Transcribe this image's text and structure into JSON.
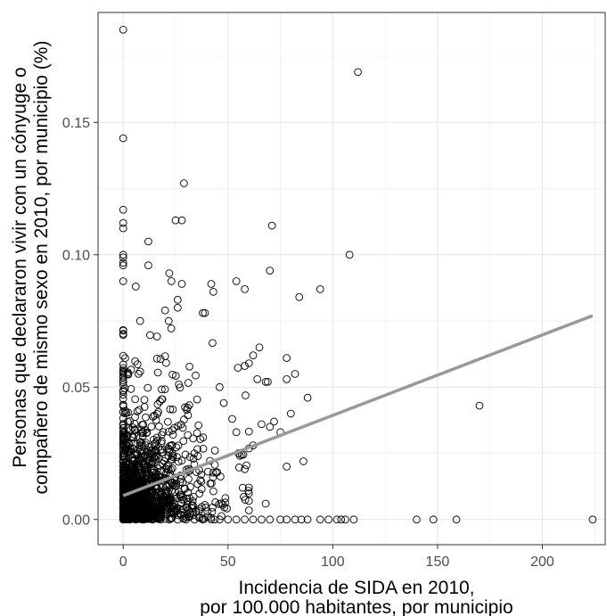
{
  "chart_data": {
    "type": "scatter",
    "title": "",
    "xlabel_lines": [
      "Incidencia de SIDA en 2010,",
      "por 100.000 habitantes, por municipio"
    ],
    "ylabel_lines": [
      "Personas que declararon vivir con un cónyuge o",
      "compañero de mismo sexo en 2010, por municipio (%)"
    ],
    "xlim": [
      -12,
      230
    ],
    "ylim": [
      -0.0095,
      0.1915
    ],
    "x_ticks": [
      0,
      50,
      100,
      150,
      200
    ],
    "x_tick_labels": [
      "0",
      "50",
      "100",
      "150",
      "200"
    ],
    "y_ticks": [
      0,
      0.05,
      0.1,
      0.15
    ],
    "y_tick_labels": [
      "0.00",
      "0.05",
      "0.10",
      "0.15"
    ],
    "grid": true,
    "marker": "open-circle",
    "marker_color": "#000000",
    "trend_line_color": "#999999",
    "trend_line": {
      "x": [
        0,
        224
      ],
      "y": [
        0.009,
        0.077
      ]
    },
    "notable_points": [
      [
        0,
        0.185
      ],
      [
        0,
        0.144
      ],
      [
        112,
        0.169
      ],
      [
        29,
        0.127
      ],
      [
        25,
        0.113
      ],
      [
        28,
        0.113
      ],
      [
        71,
        0.111
      ],
      [
        108,
        0.1
      ],
      [
        0,
        0.117
      ],
      [
        0,
        0.112
      ],
      [
        0,
        0.11
      ],
      [
        0,
        0.1
      ],
      [
        0,
        0.099
      ],
      [
        0,
        0.097
      ],
      [
        0,
        0.096
      ],
      [
        0,
        0.09
      ],
      [
        12,
        0.105
      ],
      [
        12,
        0.096
      ],
      [
        22,
        0.093
      ],
      [
        23,
        0.09
      ],
      [
        28,
        0.089
      ],
      [
        6,
        0.088
      ],
      [
        70,
        0.094
      ],
      [
        54,
        0.09
      ],
      [
        58,
        0.087
      ],
      [
        42,
        0.089
      ],
      [
        43,
        0.086
      ],
      [
        94,
        0.087
      ],
      [
        84,
        0.084
      ],
      [
        26,
        0.083
      ],
      [
        26,
        0.08
      ],
      [
        20,
        0.079
      ],
      [
        38,
        0.078
      ],
      [
        39,
        0.078
      ],
      [
        65,
        0.065
      ],
      [
        62,
        0.062
      ],
      [
        58,
        0.058
      ],
      [
        60,
        0.059
      ],
      [
        78,
        0.061
      ],
      [
        82,
        0.055
      ],
      [
        78,
        0.053
      ],
      [
        88,
        0.046
      ],
      [
        68,
        0.052
      ],
      [
        64,
        0.053
      ],
      [
        69,
        0.052
      ],
      [
        170,
        0.043
      ],
      [
        80,
        0.04
      ],
      [
        86,
        0.022
      ],
      [
        78,
        0.02
      ],
      [
        68,
        0.006
      ],
      [
        75,
        0.033
      ],
      [
        70,
        0.035
      ],
      [
        72,
        0.037
      ],
      [
        62,
        0.028
      ],
      [
        66,
        0.036
      ],
      [
        55,
        0.025
      ],
      [
        58,
        0.019
      ],
      [
        57,
        0.012
      ],
      [
        48,
        0.044
      ],
      [
        52,
        0.038
      ],
      [
        54,
        0.033
      ],
      [
        46,
        0.05
      ]
    ],
    "zero_row_x": [
      0,
      3,
      6,
      10,
      14,
      18,
      22,
      26,
      30,
      34,
      38,
      42,
      46,
      50,
      54,
      58,
      62,
      66,
      70,
      75,
      78,
      82,
      85,
      88,
      94,
      98,
      102,
      104,
      106,
      110,
      140,
      148,
      159,
      224
    ],
    "dense_cluster": {
      "n": 1400,
      "x_scale": 12,
      "y_scale": 0.016,
      "seed": 7
    },
    "zero_column": {
      "n": 120,
      "y_max": 0.082,
      "seed": 3
    }
  }
}
